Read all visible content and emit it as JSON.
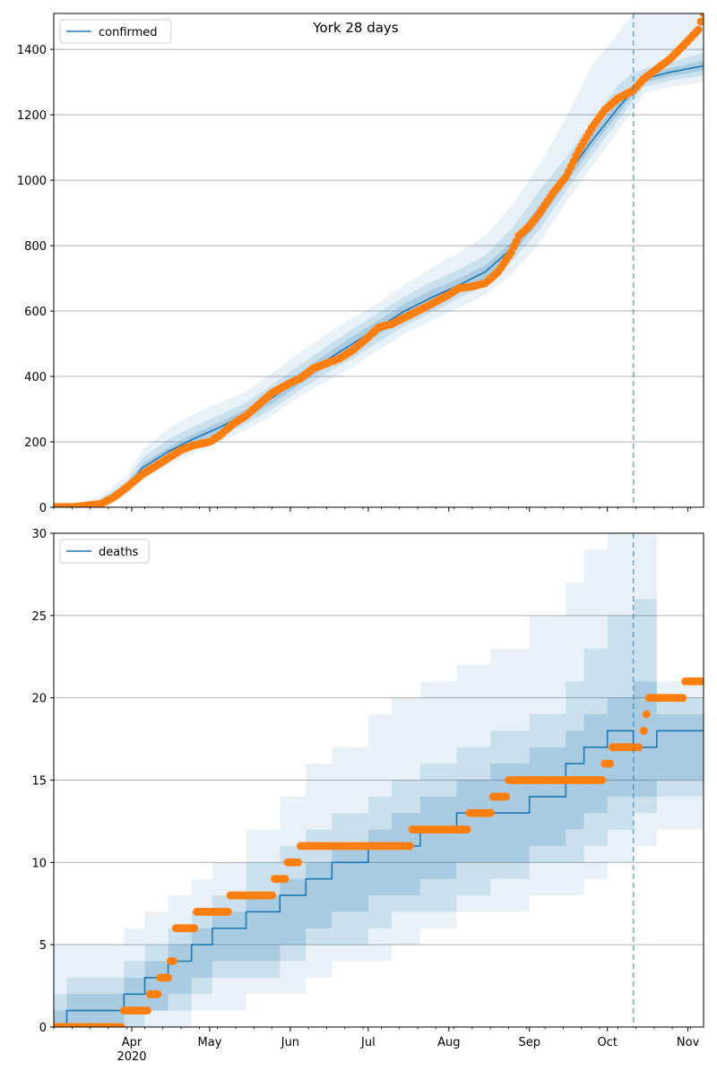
{
  "title": "York 28 days",
  "chart_data": [
    {
      "type": "line",
      "panel": "top",
      "title": "York 28 days",
      "legend": {
        "label": "confirmed",
        "placement": "top-left"
      },
      "ylim": [
        0,
        1510
      ],
      "y_ticks": [
        0,
        200,
        400,
        600,
        800,
        1000,
        1200,
        1400
      ],
      "grid": "y",
      "forecast_start": "2020-10-11",
      "model_series": {
        "name": "confirmed",
        "color": "#1f77b4",
        "x": [
          "2020-03-01",
          "2020-03-10",
          "2020-03-20",
          "2020-03-30",
          "2020-04-05",
          "2020-04-15",
          "2020-04-25",
          "2020-05-05",
          "2020-05-15",
          "2020-05-25",
          "2020-06-05",
          "2020-06-15",
          "2020-06-25",
          "2020-07-05",
          "2020-07-15",
          "2020-07-25",
          "2020-08-05",
          "2020-08-15",
          "2020-08-25",
          "2020-09-05",
          "2020-09-15",
          "2020-09-25",
          "2020-10-05",
          "2020-10-11",
          "2020-10-15",
          "2020-10-25",
          "2020-11-07"
        ],
        "values": [
          0,
          2,
          15,
          60,
          120,
          170,
          210,
          245,
          285,
          335,
          395,
          450,
          500,
          550,
          600,
          640,
          680,
          720,
          790,
          900,
          1010,
          1120,
          1220,
          1275,
          1310,
          1330,
          1350
        ]
      },
      "bands": [
        {
          "level": "outer",
          "lower": [
            0,
            0,
            5,
            35,
            85,
            130,
            165,
            200,
            235,
            280,
            340,
            385,
            430,
            480,
            530,
            570,
            610,
            650,
            710,
            810,
            930,
            1040,
            1150,
            1215,
            1265,
            1285,
            1300
          ],
          "upper": [
            0,
            8,
            35,
            95,
            175,
            240,
            285,
            320,
            355,
            410,
            475,
            530,
            580,
            625,
            680,
            730,
            780,
            830,
            920,
            1050,
            1190,
            1350,
            1450,
            1510,
            1510,
            1510,
            1510
          ]
        },
        {
          "level": "middle",
          "lower": [
            0,
            0,
            8,
            45,
            98,
            145,
            180,
            215,
            255,
            300,
            360,
            410,
            455,
            505,
            555,
            595,
            640,
            680,
            750,
            850,
            965,
            1075,
            1180,
            1245,
            1285,
            1305,
            1320
          ],
          "upper": [
            0,
            5,
            25,
            78,
            150,
            208,
            248,
            283,
            320,
            375,
            436,
            492,
            545,
            595,
            645,
            687,
            728,
            770,
            850,
            970,
            1070,
            1180,
            1290,
            1330,
            1340,
            1360,
            1390
          ]
        },
        {
          "level": "inner",
          "lower": [
            0,
            1,
            10,
            52,
            108,
            157,
            195,
            230,
            270,
            317,
            377,
            430,
            478,
            528,
            577,
            617,
            660,
            700,
            770,
            875,
            990,
            1100,
            1200,
            1260,
            1298,
            1318,
            1335
          ],
          "upper": [
            0,
            3,
            20,
            68,
            132,
            183,
            225,
            260,
            300,
            353,
            413,
            470,
            522,
            572,
            623,
            663,
            700,
            740,
            810,
            925,
            1030,
            1140,
            1240,
            1290,
            1322,
            1342,
            1365
          ]
        }
      ],
      "observed": {
        "color": "#ff7f0e",
        "x": [
          "2020-03-01",
          "2020-03-10",
          "2020-03-20",
          "2020-03-25",
          "2020-03-30",
          "2020-04-05",
          "2020-04-10",
          "2020-04-15",
          "2020-04-20",
          "2020-04-25",
          "2020-05-01",
          "2020-05-05",
          "2020-05-10",
          "2020-05-15",
          "2020-05-20",
          "2020-05-25",
          "2020-06-01",
          "2020-06-05",
          "2020-06-10",
          "2020-06-15",
          "2020-06-20",
          "2020-06-25",
          "2020-07-01",
          "2020-07-05",
          "2020-07-10",
          "2020-07-15",
          "2020-07-20",
          "2020-07-25",
          "2020-08-01",
          "2020-08-05",
          "2020-08-10",
          "2020-08-15",
          "2020-08-20",
          "2020-08-25",
          "2020-08-28",
          "2020-09-01",
          "2020-09-05",
          "2020-09-10",
          "2020-09-15",
          "2020-09-20",
          "2020-09-25",
          "2020-09-30",
          "2020-10-05",
          "2020-10-11",
          "2020-10-15",
          "2020-10-20",
          "2020-10-25",
          "2020-10-30",
          "2020-11-05",
          "2020-11-07"
        ],
        "values": [
          0,
          1,
          10,
          30,
          60,
          100,
          125,
          150,
          175,
          190,
          200,
          220,
          255,
          280,
          315,
          350,
          380,
          395,
          425,
          440,
          455,
          480,
          520,
          550,
          560,
          580,
          600,
          620,
          650,
          670,
          675,
          685,
          720,
          780,
          830,
          860,
          900,
          960,
          1010,
          1090,
          1160,
          1215,
          1250,
          1275,
          1310,
          1340,
          1370,
          1410,
          1460,
          1510
        ]
      }
    },
    {
      "type": "line",
      "panel": "bottom",
      "legend": {
        "label": "deaths",
        "placement": "top-left"
      },
      "ylim": [
        0,
        30
      ],
      "y_ticks": [
        0,
        5,
        10,
        15,
        20,
        25,
        30
      ],
      "grid": "y",
      "x_range": [
        "2020-03-02",
        "2020-11-07"
      ],
      "x_tick_labels": [
        {
          "date": "2020-04-01",
          "label": "Apr",
          "sublabel": "2020"
        },
        {
          "date": "2020-05-01",
          "label": "May"
        },
        {
          "date": "2020-06-01",
          "label": "Jun"
        },
        {
          "date": "2020-07-01",
          "label": "Jul"
        },
        {
          "date": "2020-08-01",
          "label": "Aug"
        },
        {
          "date": "2020-09-01",
          "label": "Sep"
        },
        {
          "date": "2020-10-01",
          "label": "Oct"
        },
        {
          "date": "2020-11-01",
          "label": "Nov"
        }
      ],
      "forecast_start": "2020-10-11",
      "model_series": {
        "name": "deaths",
        "color": "#1f77b4",
        "x": [
          "2020-03-02",
          "2020-03-07",
          "2020-03-29",
          "2020-04-06",
          "2020-04-15",
          "2020-04-24",
          "2020-05-02",
          "2020-05-15",
          "2020-05-28",
          "2020-06-07",
          "2020-06-17",
          "2020-07-01",
          "2020-07-10",
          "2020-07-21",
          "2020-08-04",
          "2020-08-17",
          "2020-09-01",
          "2020-09-15",
          "2020-09-22",
          "2020-10-01",
          "2020-10-11",
          "2020-10-20",
          "2020-11-07"
        ],
        "values": [
          0,
          1,
          2,
          3,
          4,
          5,
          6,
          7,
          8,
          9,
          10,
          11,
          11,
          12,
          13,
          13,
          14,
          16,
          17,
          18,
          17,
          18,
          18
        ]
      },
      "bands": [
        {
          "level": "outer",
          "lower": [
            0,
            0,
            0,
            0,
            0,
            1,
            1,
            2,
            2,
            3,
            4,
            4,
            5,
            6,
            7,
            7,
            8,
            8,
            9,
            10,
            11,
            12,
            12
          ],
          "upper": [
            5,
            5,
            6,
            7,
            8,
            9,
            10,
            12,
            14,
            16,
            17,
            19,
            20,
            21,
            22,
            23,
            25,
            27,
            29,
            30,
            30,
            21,
            22
          ]
        },
        {
          "level": "middle",
          "lower": [
            0,
            0,
            0,
            1,
            1,
            2,
            3,
            3,
            4,
            5,
            5,
            6,
            7,
            7,
            8,
            9,
            10,
            10,
            11,
            12,
            13,
            14,
            14
          ],
          "upper": [
            2,
            3,
            4,
            5,
            6,
            7,
            8,
            10,
            11,
            12,
            13,
            14,
            15,
            16,
            17,
            18,
            19,
            21,
            23,
            25,
            26,
            20,
            20
          ]
        },
        {
          "level": "inner",
          "lower": [
            0,
            0,
            1,
            1,
            2,
            3,
            4,
            4,
            5,
            6,
            7,
            8,
            8,
            9,
            10,
            10,
            11,
            12,
            13,
            14,
            14,
            15,
            15
          ],
          "upper": [
            1,
            2,
            3,
            4,
            5,
            6,
            7,
            8,
            9,
            10,
            11,
            12,
            13,
            14,
            15,
            16,
            17,
            18,
            19,
            20,
            21,
            19,
            19
          ]
        }
      ],
      "observed": {
        "color": "#ff7f0e",
        "segments": [
          {
            "from": "2020-03-02",
            "to": "2020-03-28",
            "value": 0
          },
          {
            "from": "2020-03-29",
            "to": "2020-04-07",
            "value": 1
          },
          {
            "from": "2020-04-08",
            "to": "2020-04-11",
            "value": 2
          },
          {
            "from": "2020-04-12",
            "to": "2020-04-15",
            "value": 3
          },
          {
            "from": "2020-04-16",
            "to": "2020-04-17",
            "value": 4
          },
          {
            "from": "2020-04-18",
            "to": "2020-04-25",
            "value": 6
          },
          {
            "from": "2020-04-26",
            "to": "2020-05-08",
            "value": 7
          },
          {
            "from": "2020-05-09",
            "to": "2020-05-25",
            "value": 8
          },
          {
            "from": "2020-05-26",
            "to": "2020-05-30",
            "value": 9
          },
          {
            "from": "2020-05-31",
            "to": "2020-06-04",
            "value": 10
          },
          {
            "from": "2020-06-05",
            "to": "2020-07-17",
            "value": 11
          },
          {
            "from": "2020-07-18",
            "to": "2020-08-08",
            "value": 12
          },
          {
            "from": "2020-08-09",
            "to": "2020-08-17",
            "value": 13
          },
          {
            "from": "2020-08-18",
            "to": "2020-08-23",
            "value": 14
          },
          {
            "from": "2020-08-24",
            "to": "2020-09-29",
            "value": 15
          },
          {
            "from": "2020-09-30",
            "to": "2020-10-02",
            "value": 16
          },
          {
            "from": "2020-10-03",
            "to": "2020-10-13",
            "value": 17
          },
          {
            "from": "2020-10-15",
            "to": "2020-10-15",
            "value": 18
          },
          {
            "from": "2020-10-16",
            "to": "2020-10-16",
            "value": 19
          },
          {
            "from": "2020-10-17",
            "to": "2020-10-30",
            "value": 20
          },
          {
            "from": "2020-10-31",
            "to": "2020-11-07",
            "value": 21
          }
        ]
      }
    }
  ]
}
